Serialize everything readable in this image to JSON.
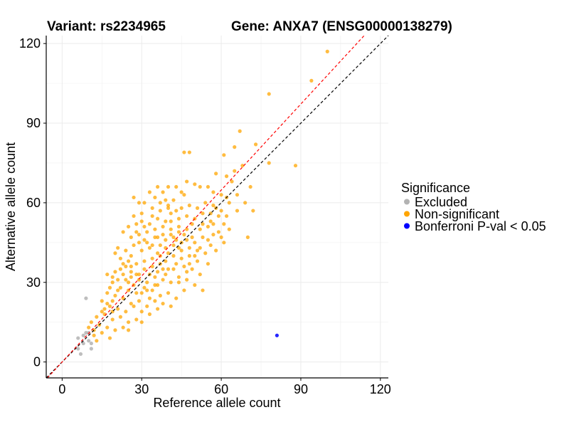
{
  "chart_data": {
    "type": "scatter",
    "title_left": "Variant: rs2234965",
    "title_right": "Gene: ANXA7 (ENSG00000138279)",
    "xlabel": "Reference allele count",
    "ylabel": "Alternative allele count",
    "xlim": [
      -6,
      123
    ],
    "ylim": [
      -6,
      123
    ],
    "xticks": [
      0,
      30,
      60,
      90,
      120
    ],
    "yticks": [
      0,
      30,
      60,
      90,
      120
    ],
    "grid": true,
    "legend": {
      "title": "Significance",
      "position": "right",
      "entries": [
        {
          "label": "Excluded",
          "color": "#b3b3b3"
        },
        {
          "label": "Non-significant",
          "color": "#ffa500"
        },
        {
          "label": "Bonferroni P-val < 0.05",
          "color": "#0000ff"
        }
      ]
    },
    "reference_lines": [
      {
        "name": "identity",
        "slope": 1.0,
        "intercept": 0,
        "color": "#000000",
        "style": "dashed"
      },
      {
        "name": "fitted",
        "slope": 1.08,
        "intercept": 0,
        "color": "#ff0000",
        "style": "dashed"
      }
    ],
    "series": [
      {
        "name": "Excluded",
        "color": "#b3b3b3",
        "points": [
          [
            9,
            24
          ],
          [
            6,
            9
          ],
          [
            7,
            3
          ],
          [
            8,
            7
          ],
          [
            9,
            11
          ],
          [
            10,
            8
          ],
          [
            11,
            5
          ],
          [
            6,
            5
          ],
          [
            8,
            10
          ],
          [
            10,
            11
          ],
          [
            11,
            7
          ]
        ]
      },
      {
        "name": "Non-significant",
        "color": "#ffa500",
        "points": [
          [
            100,
            117
          ],
          [
            94,
            106
          ],
          [
            78,
            101
          ],
          [
            88,
            74
          ],
          [
            78,
            75
          ],
          [
            67,
            87
          ],
          [
            73,
            82
          ],
          [
            65,
            81
          ],
          [
            61,
            78
          ],
          [
            48,
            79
          ],
          [
            46,
            79
          ],
          [
            71,
            66
          ],
          [
            65,
            72
          ],
          [
            64,
            68
          ],
          [
            62,
            70
          ],
          [
            58,
            71
          ],
          [
            69,
            60
          ],
          [
            72,
            57
          ],
          [
            70,
            47
          ],
          [
            66,
            63
          ],
          [
            62,
            62
          ],
          [
            60,
            63
          ],
          [
            57,
            64
          ],
          [
            55,
            66
          ],
          [
            52,
            66
          ],
          [
            50,
            67
          ],
          [
            47,
            68
          ],
          [
            45,
            64
          ],
          [
            43,
            66
          ],
          [
            40,
            66
          ],
          [
            38,
            64
          ],
          [
            36,
            66
          ],
          [
            33,
            64
          ],
          [
            31,
            60
          ],
          [
            29,
            60
          ],
          [
            27,
            62
          ],
          [
            30,
            56
          ],
          [
            34,
            58
          ],
          [
            37,
            60
          ],
          [
            40,
            59
          ],
          [
            42,
            61
          ],
          [
            45,
            58
          ],
          [
            48,
            59
          ],
          [
            51,
            58
          ],
          [
            54,
            60
          ],
          [
            56,
            56
          ],
          [
            59,
            55
          ],
          [
            61,
            52
          ],
          [
            63,
            50
          ],
          [
            60,
            47
          ],
          [
            57,
            48
          ],
          [
            55,
            51
          ],
          [
            52,
            50
          ],
          [
            49,
            52
          ],
          [
            47,
            55
          ],
          [
            44,
            54
          ],
          [
            41,
            56
          ],
          [
            39,
            53
          ],
          [
            36,
            54
          ],
          [
            33,
            52
          ],
          [
            30,
            53
          ],
          [
            27,
            55
          ],
          [
            25,
            51
          ],
          [
            23,
            49
          ],
          [
            26,
            47
          ],
          [
            29,
            48
          ],
          [
            32,
            49
          ],
          [
            35,
            47
          ],
          [
            38,
            48
          ],
          [
            41,
            50
          ],
          [
            44,
            49
          ],
          [
            47,
            46
          ],
          [
            50,
            45
          ],
          [
            53,
            47
          ],
          [
            56,
            44
          ],
          [
            58,
            42
          ],
          [
            61,
            45
          ],
          [
            54,
            41
          ],
          [
            51,
            42
          ],
          [
            48,
            40
          ],
          [
            45,
            42
          ],
          [
            42,
            44
          ],
          [
            39,
            43
          ],
          [
            36,
            41
          ],
          [
            33,
            43
          ],
          [
            30,
            42
          ],
          [
            27,
            44
          ],
          [
            24,
            42
          ],
          [
            21,
            43
          ],
          [
            22,
            39
          ],
          [
            25,
            38
          ],
          [
            28,
            37
          ],
          [
            31,
            38
          ],
          [
            34,
            36
          ],
          [
            37,
            37
          ],
          [
            40,
            35
          ],
          [
            43,
            37
          ],
          [
            46,
            36
          ],
          [
            49,
            35
          ],
          [
            52,
            33
          ],
          [
            47,
            31
          ],
          [
            44,
            32
          ],
          [
            41,
            30
          ],
          [
            38,
            31
          ],
          [
            35,
            32
          ],
          [
            32,
            30
          ],
          [
            29,
            31
          ],
          [
            26,
            32
          ],
          [
            23,
            33
          ],
          [
            20,
            34
          ],
          [
            19,
            30
          ],
          [
            22,
            28
          ],
          [
            25,
            27
          ],
          [
            28,
            26
          ],
          [
            31,
            28
          ],
          [
            34,
            27
          ],
          [
            37,
            25
          ],
          [
            40,
            26
          ],
          [
            43,
            24
          ],
          [
            46,
            27
          ],
          [
            53,
            27
          ],
          [
            50,
            29
          ],
          [
            41,
            21
          ],
          [
            38,
            22
          ],
          [
            35,
            23
          ],
          [
            32,
            21
          ],
          [
            29,
            23
          ],
          [
            26,
            22
          ],
          [
            23,
            24
          ],
          [
            20,
            25
          ],
          [
            17,
            26
          ],
          [
            15,
            23
          ],
          [
            18,
            21
          ],
          [
            21,
            20
          ],
          [
            24,
            19
          ],
          [
            27,
            21
          ],
          [
            30,
            19
          ],
          [
            33,
            18
          ],
          [
            36,
            20
          ],
          [
            28,
            16
          ],
          [
            25,
            15
          ],
          [
            22,
            17
          ],
          [
            19,
            16
          ],
          [
            16,
            18
          ],
          [
            13,
            17
          ],
          [
            14,
            14
          ],
          [
            17,
            13
          ],
          [
            20,
            12
          ],
          [
            23,
            13
          ],
          [
            25,
            12
          ],
          [
            30,
            15
          ],
          [
            12,
            12
          ],
          [
            10,
            13
          ],
          [
            15,
            11
          ],
          [
            18,
            9
          ],
          [
            13,
            8
          ],
          [
            11,
            15
          ],
          [
            16,
            20
          ],
          [
            19,
            19
          ],
          [
            39,
            46
          ],
          [
            42,
            47
          ],
          [
            45,
            45
          ],
          [
            48,
            43
          ],
          [
            37,
            44
          ],
          [
            34,
            39
          ],
          [
            31,
            35
          ],
          [
            28,
            33
          ],
          [
            35,
            50
          ],
          [
            38,
            51
          ],
          [
            41,
            53
          ],
          [
            44,
            51
          ],
          [
            47,
            50
          ],
          [
            50,
            54
          ],
          [
            53,
            56
          ],
          [
            56,
            53
          ],
          [
            59,
            49
          ],
          [
            62,
            55
          ],
          [
            57,
            59
          ],
          [
            43,
            57
          ],
          [
            26,
            40
          ],
          [
            24,
            36
          ],
          [
            21,
            31
          ],
          [
            18,
            28
          ],
          [
            33,
            33
          ],
          [
            36,
            34
          ],
          [
            39,
            38
          ],
          [
            42,
            40
          ],
          [
            45,
            39
          ],
          [
            48,
            37
          ],
          [
            51,
            38
          ],
          [
            55,
            37
          ],
          [
            32,
            45
          ],
          [
            29,
            45
          ],
          [
            26,
            36
          ],
          [
            23,
            37
          ],
          [
            34,
            55
          ],
          [
            37,
            57
          ],
          [
            40,
            58
          ],
          [
            53,
            52
          ],
          [
            58,
            58
          ],
          [
            49,
            47
          ],
          [
            46,
            48
          ],
          [
            43,
            46
          ],
          [
            40,
            41
          ],
          [
            37,
            40
          ],
          [
            34,
            44
          ],
          [
            31,
            46
          ],
          [
            28,
            49
          ],
          [
            25,
            30
          ],
          [
            22,
            35
          ],
          [
            19,
            23
          ],
          [
            17,
            33
          ],
          [
            20,
            41
          ],
          [
            27,
            29
          ],
          [
            30,
            26
          ],
          [
            33,
            24
          ],
          [
            36,
            29
          ],
          [
            39,
            33
          ],
          [
            42,
            35
          ],
          [
            44,
            30
          ],
          [
            47,
            34
          ],
          [
            50,
            40
          ],
          [
            52,
            43
          ],
          [
            55,
            46
          ],
          [
            57,
            52
          ],
          [
            60,
            57
          ],
          [
            63,
            60
          ],
          [
            66,
            57
          ],
          [
            68,
            74
          ],
          [
            46,
            63
          ],
          [
            39,
            61
          ],
          [
            35,
            62
          ],
          [
            31,
            51
          ],
          [
            28,
            52
          ],
          [
            36,
            47
          ],
          [
            41,
            48
          ],
          [
            44,
            43
          ],
          [
            38,
            35
          ],
          [
            35,
            29
          ],
          [
            32,
            27
          ],
          [
            29,
            33
          ],
          [
            26,
            34
          ],
          [
            24,
            31
          ],
          [
            21,
            27
          ],
          [
            19,
            32
          ],
          [
            17,
            22
          ],
          [
            15,
            19
          ],
          [
            12,
            10
          ]
        ]
      },
      {
        "name": "Bonferroni P-val < 0.05",
        "color": "#0000ff",
        "points": [
          [
            81,
            10
          ]
        ]
      }
    ]
  }
}
